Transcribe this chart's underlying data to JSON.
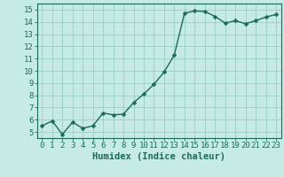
{
  "x": [
    0,
    1,
    2,
    3,
    4,
    5,
    6,
    7,
    8,
    9,
    10,
    11,
    12,
    13,
    14,
    15,
    16,
    17,
    18,
    19,
    20,
    21,
    22,
    23
  ],
  "y": [
    5.5,
    5.9,
    4.8,
    5.8,
    5.3,
    5.5,
    6.55,
    6.4,
    6.45,
    7.4,
    8.1,
    8.9,
    9.9,
    11.3,
    14.7,
    14.9,
    14.85,
    14.45,
    13.9,
    14.1,
    13.85,
    14.1,
    14.4,
    14.6
  ],
  "xlabel": "Humidex (Indice chaleur)",
  "xlim": [
    -0.5,
    23.5
  ],
  "ylim": [
    4.5,
    15.5
  ],
  "yticks": [
    5,
    6,
    7,
    8,
    9,
    10,
    11,
    12,
    13,
    14,
    15
  ],
  "xticks": [
    0,
    1,
    2,
    3,
    4,
    5,
    6,
    7,
    8,
    9,
    10,
    11,
    12,
    13,
    14,
    15,
    16,
    17,
    18,
    19,
    20,
    21,
    22,
    23
  ],
  "line_color": "#1a6b5a",
  "marker_color": "#1a6b5a",
  "bg_color": "#c5ebe4",
  "grid_color": "#92c8bf",
  "xlabel_fontsize": 7.5,
  "tick_fontsize": 6.5,
  "line_width": 1.0,
  "marker_size": 2.5
}
